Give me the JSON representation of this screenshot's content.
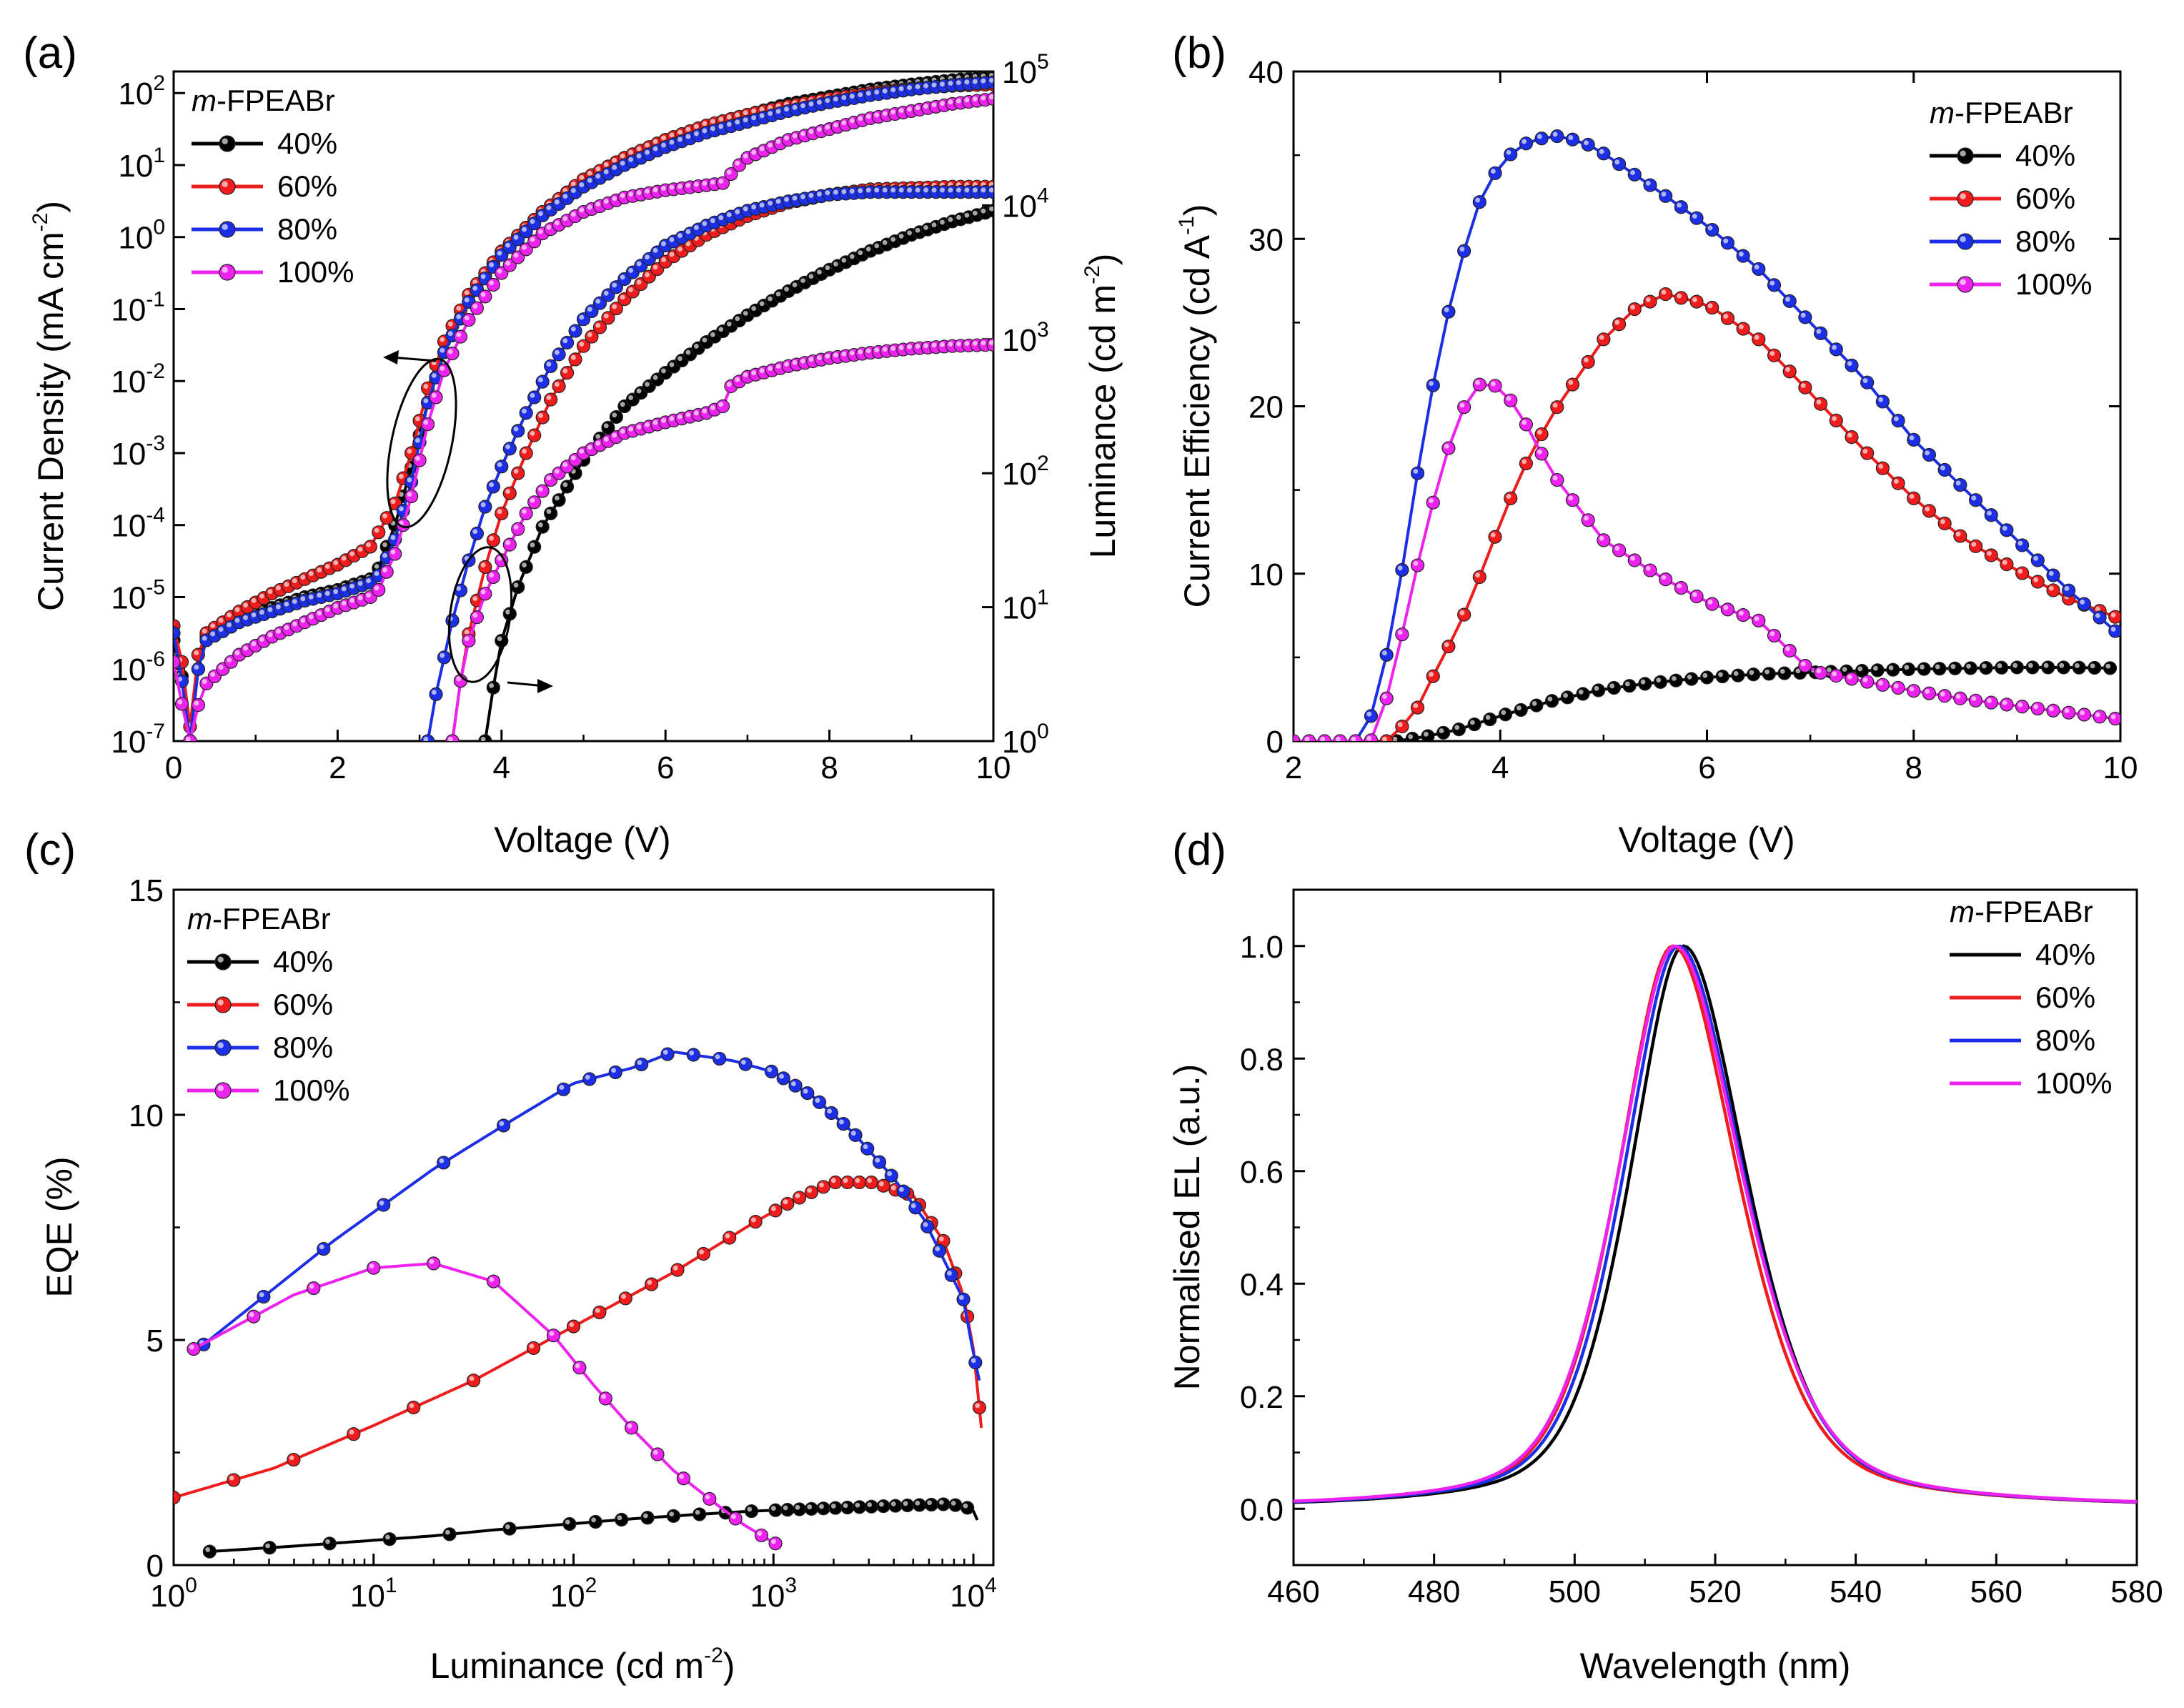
{
  "figure": {
    "panel_labels": [
      "(a)",
      "(b)",
      "(c)",
      "(d)"
    ],
    "legend_title": "FPEABr",
    "legend_title_prefix": "m",
    "series_names": [
      "40%",
      "60%",
      "80%",
      "100%"
    ]
  },
  "colors": {
    "s40": "#000000",
    "s60": "#ee1c1c",
    "s80": "#1c2fe6",
    "s100": "#ee22ee"
  },
  "chart_data": [
    {
      "id": "a",
      "type": "line",
      "title": "",
      "xlabel": "Voltage (V)",
      "ylabel": "Current Density (mA cm^-2)",
      "y2label": "Luminance (cd m^-2)",
      "xlim": [
        0,
        10
      ],
      "ylim_log10": [
        -7,
        2.3
      ],
      "y2lim_log10": [
        0,
        5
      ],
      "x_ticks": [
        "0",
        "2",
        "4",
        "6",
        "8",
        "10"
      ],
      "y_ticks": [
        "10^-7",
        "10^-6",
        "10^-5",
        "10^-4",
        "10^-3",
        "10^-2",
        "10^-1",
        "10^0",
        "10^1",
        "10^2"
      ],
      "y2_ticks": [
        "10^0",
        "10^1",
        "10^2",
        "10^3",
        "10^4",
        "10^5"
      ],
      "annotations": [
        "arrow-left: current density curves",
        "arrow-right: luminance curves"
      ],
      "current_density_log10": [
        {
          "name": "40%",
          "x": [
            0,
            0.12,
            0.2,
            0.25,
            0.3,
            0.4,
            0.8,
            1.2,
            1.6,
            2.0,
            2.4,
            2.5,
            2.7,
            2.9,
            3.1,
            3.3,
            3.6,
            4.0,
            4.5,
            5.0,
            5.5,
            6.0,
            6.5,
            7.0,
            7.5,
            8.0,
            8.5,
            9.0,
            9.5,
            10
          ],
          "y": [
            -5.6,
            -6.2,
            -7.0,
            -6.5,
            -6.0,
            -5.55,
            -5.3,
            -5.15,
            -5.0,
            -4.9,
            -4.75,
            -4.6,
            -4.0,
            -3.2,
            -2.3,
            -1.6,
            -0.9,
            -0.2,
            0.35,
            0.8,
            1.1,
            1.35,
            1.55,
            1.7,
            1.85,
            1.95,
            2.05,
            2.12,
            2.18,
            2.22
          ]
        },
        {
          "name": "60%",
          "x": [
            0,
            0.12,
            0.2,
            0.25,
            0.3,
            0.4,
            0.8,
            1.2,
            1.6,
            2.0,
            2.4,
            2.5,
            2.7,
            2.9,
            3.1,
            3.3,
            3.6,
            4.0,
            4.5,
            5.0,
            5.5,
            6.0,
            6.5,
            7.0,
            7.5,
            8.0,
            8.5,
            9.0,
            9.5,
            10
          ],
          "y": [
            -5.4,
            -6.0,
            -6.8,
            -6.3,
            -5.8,
            -5.5,
            -5.2,
            -4.95,
            -4.75,
            -4.55,
            -4.3,
            -4.1,
            -3.7,
            -3.0,
            -2.1,
            -1.45,
            -0.8,
            -0.2,
            0.35,
            0.8,
            1.1,
            1.35,
            1.55,
            1.7,
            1.82,
            1.92,
            2.0,
            2.06,
            2.1,
            2.12
          ]
        },
        {
          "name": "80%",
          "x": [
            0,
            0.12,
            0.2,
            0.25,
            0.3,
            0.4,
            0.8,
            1.2,
            1.6,
            2.0,
            2.4,
            2.5,
            2.7,
            2.9,
            3.1,
            3.3,
            3.6,
            4.0,
            4.5,
            5.0,
            5.5,
            6.0,
            6.5,
            7.0,
            7.5,
            8.0,
            8.5,
            9.0,
            9.5,
            10
          ],
          "y": [
            -5.5,
            -6.3,
            -7.0,
            -6.4,
            -6.0,
            -5.6,
            -5.35,
            -5.2,
            -5.05,
            -4.95,
            -4.8,
            -4.7,
            -4.2,
            -3.4,
            -2.3,
            -1.6,
            -0.9,
            -0.25,
            0.3,
            0.7,
            1.0,
            1.25,
            1.45,
            1.6,
            1.75,
            1.87,
            1.97,
            2.05,
            2.11,
            2.15
          ]
        },
        {
          "name": "100%",
          "x": [
            0,
            0.12,
            0.2,
            0.25,
            0.3,
            0.4,
            0.8,
            1.2,
            1.6,
            2.0,
            2.4,
            2.5,
            2.7,
            2.9,
            3.1,
            3.3,
            3.6,
            4.0,
            4.5,
            5.0,
            5.5,
            6.0,
            6.5,
            6.7,
            6.9,
            7.0,
            7.5,
            8.0,
            8.5,
            9.0,
            9.5,
            10
          ],
          "y": [
            -5.9,
            -6.6,
            -7.0,
            -6.8,
            -6.5,
            -6.2,
            -5.8,
            -5.55,
            -5.35,
            -5.15,
            -5.0,
            -4.9,
            -4.4,
            -3.6,
            -2.6,
            -1.85,
            -1.15,
            -0.5,
            0.05,
            0.35,
            0.55,
            0.65,
            0.72,
            0.75,
            1.0,
            1.1,
            1.35,
            1.5,
            1.65,
            1.75,
            1.85,
            1.92
          ]
        }
      ],
      "luminance_log10": [
        {
          "name": "40%",
          "x": [
            3.8,
            3.9,
            4.0,
            4.2,
            4.5,
            5.0,
            5.5,
            6.0,
            6.5,
            7.0,
            7.5,
            8.0,
            8.5,
            9.0,
            9.5,
            10
          ],
          "y": [
            0,
            0.4,
            0.75,
            1.15,
            1.6,
            2.1,
            2.5,
            2.75,
            2.98,
            3.18,
            3.36,
            3.52,
            3.66,
            3.78,
            3.88,
            3.96
          ]
        },
        {
          "name": "60%",
          "x": [
            3.4,
            3.5,
            3.6,
            3.8,
            4.0,
            4.3,
            4.6,
            5.0,
            5.5,
            6.0,
            6.5,
            7.0,
            7.5,
            8.0,
            8.5,
            9.0,
            9.5,
            10
          ],
          "y": [
            0,
            0.45,
            0.8,
            1.3,
            1.7,
            2.15,
            2.55,
            2.95,
            3.3,
            3.58,
            3.78,
            3.92,
            4.02,
            4.08,
            4.12,
            4.13,
            4.14,
            4.14
          ]
        },
        {
          "name": "80%",
          "x": [
            3.1,
            3.2,
            3.4,
            3.6,
            3.8,
            4.0,
            4.3,
            4.6,
            5.0,
            5.5,
            6.0,
            6.5,
            7.0,
            7.5,
            8.0,
            8.5,
            9.0,
            9.5,
            10
          ],
          "y": [
            0,
            0.35,
            0.9,
            1.35,
            1.75,
            2.05,
            2.45,
            2.8,
            3.15,
            3.45,
            3.7,
            3.85,
            3.96,
            4.03,
            4.08,
            4.1,
            4.1,
            4.1,
            4.1
          ]
        },
        {
          "name": "100%",
          "x": [
            3.4,
            3.5,
            3.6,
            3.8,
            4.0,
            4.3,
            4.6,
            5.0,
            5.5,
            6.0,
            6.5,
            6.7,
            6.8,
            7.0,
            7.5,
            8.0,
            8.5,
            9.0,
            9.5,
            10
          ],
          "y": [
            0,
            0.45,
            0.75,
            1.1,
            1.35,
            1.7,
            1.95,
            2.15,
            2.3,
            2.38,
            2.45,
            2.5,
            2.65,
            2.72,
            2.8,
            2.86,
            2.9,
            2.93,
            2.95,
            2.96
          ]
        }
      ]
    },
    {
      "id": "b",
      "type": "line",
      "title": "",
      "xlabel": "Voltage (V)",
      "ylabel": "Current Efficiency (cd A^-1)",
      "xlim": [
        2,
        10
      ],
      "ylim": [
        0,
        40
      ],
      "x_ticks": [
        "2",
        "4",
        "6",
        "8",
        "10"
      ],
      "y_ticks": [
        "0",
        "10",
        "20",
        "30",
        "40"
      ],
      "series": [
        {
          "name": "40%",
          "x": [
            3.0,
            3.3,
            3.6,
            4.0,
            4.5,
            5.0,
            5.5,
            6.0,
            6.5,
            7.0,
            7.5,
            8.0,
            8.5,
            9.0,
            9.5,
            10
          ],
          "y": [
            0,
            0.3,
            0.7,
            1.5,
            2.4,
            3.1,
            3.5,
            3.8,
            4.0,
            4.1,
            4.2,
            4.3,
            4.35,
            4.4,
            4.4,
            4.35
          ]
        },
        {
          "name": "60%",
          "x": [
            2.9,
            3.0,
            3.2,
            3.4,
            3.6,
            3.8,
            4.0,
            4.2,
            4.5,
            5.0,
            5.3,
            5.6,
            6.0,
            6.5,
            7.0,
            7.5,
            8.0,
            8.5,
            9.0,
            9.5,
            10
          ],
          "y": [
            0,
            0.5,
            2.0,
            4.5,
            6.8,
            9.8,
            13.0,
            16.0,
            19.5,
            24.0,
            25.8,
            26.7,
            26.1,
            24.0,
            20.8,
            17.5,
            14.5,
            12.0,
            10.2,
            8.5,
            7.3
          ]
        },
        {
          "name": "80%",
          "x": [
            2.6,
            2.8,
            3.0,
            3.2,
            3.4,
            3.6,
            3.8,
            4.0,
            4.2,
            4.5,
            4.8,
            5.0,
            5.5,
            6.0,
            6.5,
            7.0,
            7.5,
            8.0,
            8.5,
            9.0,
            9.5,
            10
          ],
          "y": [
            0,
            2.0,
            8.3,
            16.0,
            23.0,
            28.3,
            32.2,
            34.5,
            35.6,
            36.2,
            35.8,
            35.1,
            33.0,
            30.8,
            28.2,
            25.0,
            21.8,
            18.0,
            15.0,
            12.0,
            9.0,
            6.3
          ]
        },
        {
          "name": "100%",
          "x": [
            2.0,
            2.4,
            2.7,
            2.8,
            3.0,
            3.2,
            3.4,
            3.6,
            3.8,
            4.0,
            4.2,
            4.5,
            5.0,
            5.5,
            6.0,
            6.5,
            7.0,
            7.5,
            8.0,
            8.5,
            9.0,
            9.5,
            10
          ],
          "y": [
            0,
            0,
            0,
            0.1,
            5.0,
            10.5,
            15.5,
            19.5,
            21.3,
            21.2,
            19.5,
            16.0,
            12.0,
            10.0,
            8.3,
            7.2,
            4.2,
            3.6,
            3.0,
            2.5,
            2.1,
            1.7,
            1.3
          ]
        }
      ]
    },
    {
      "id": "c",
      "type": "line",
      "title": "",
      "xlabel": "Luminance (cd m^-2)",
      "ylabel": "EQE (%)",
      "xlim_log10": [
        0,
        4.1
      ],
      "ylim": [
        0,
        15
      ],
      "x_ticks": [
        "10^0",
        "10^1",
        "10^2",
        "10^3",
        "10^4"
      ],
      "y_ticks": [
        "0",
        "5",
        "10",
        "15"
      ],
      "series": [
        {
          "name": "40%",
          "x_log10": [
            0.18,
            0.6,
            1.0,
            1.3,
            1.6,
            2.0,
            2.3,
            2.6,
            2.9,
            3.2,
            3.5,
            3.7,
            3.85,
            3.95,
            4.0,
            4.02
          ],
          "y": [
            0.3,
            0.42,
            0.55,
            0.65,
            0.78,
            0.92,
            1.03,
            1.12,
            1.2,
            1.25,
            1.3,
            1.33,
            1.35,
            1.32,
            1.2,
            1.0
          ]
        },
        {
          "name": "60%",
          "x_log10": [
            0.0,
            0.5,
            1.0,
            1.5,
            2.0,
            2.5,
            2.9,
            3.1,
            3.3,
            3.5,
            3.7,
            3.85,
            3.95,
            4.0,
            4.03,
            4.05
          ],
          "y": [
            1.5,
            2.15,
            3.1,
            4.1,
            5.3,
            6.5,
            7.6,
            8.1,
            8.5,
            8.5,
            8.2,
            7.2,
            6.0,
            4.8,
            3.5,
            2.6
          ]
        },
        {
          "name": "80%",
          "x_log10": [
            0.15,
            0.8,
            1.3,
            1.7,
            2.0,
            2.3,
            2.5,
            2.8,
            3.0,
            3.2,
            3.4,
            3.6,
            3.75,
            3.85,
            3.95,
            4.0,
            4.03
          ],
          "y": [
            4.9,
            7.2,
            8.8,
            9.9,
            10.7,
            11.05,
            11.4,
            11.2,
            10.95,
            10.4,
            9.6,
            8.6,
            7.7,
            6.8,
            5.9,
            4.7,
            4.1
          ]
        },
        {
          "name": "100%",
          "x_log10": [
            0.1,
            0.6,
            1.0,
            1.3,
            1.6,
            1.9,
            2.1,
            2.3,
            2.5,
            2.7,
            2.85,
            3.0,
            3.05
          ],
          "y": [
            4.8,
            6.0,
            6.6,
            6.7,
            6.3,
            5.1,
            4.0,
            3.0,
            2.1,
            1.4,
            0.9,
            0.5,
            0.4
          ]
        }
      ]
    },
    {
      "id": "d",
      "type": "line",
      "title": "",
      "xlabel": "Wavelength (nm)",
      "ylabel": "Normalised EL (a.u.)",
      "xlim": [
        460,
        580
      ],
      "ylim": [
        -0.1,
        1.1
      ],
      "x_ticks": [
        "460",
        "480",
        "500",
        "520",
        "540",
        "560",
        "580"
      ],
      "y_ticks": [
        "0.0",
        "0.2",
        "0.4",
        "0.6",
        "0.8",
        "1.0"
      ],
      "series": [
        {
          "name": "40%",
          "peak_nm": 515.5,
          "fwhm_nm": 19.0
        },
        {
          "name": "60%",
          "peak_nm": 514.0,
          "fwhm_nm": 19.5
        },
        {
          "name": "80%",
          "peak_nm": 514.8,
          "fwhm_nm": 19.6
        },
        {
          "name": "100%",
          "peak_nm": 514.3,
          "fwhm_nm": 20.2
        }
      ]
    }
  ]
}
